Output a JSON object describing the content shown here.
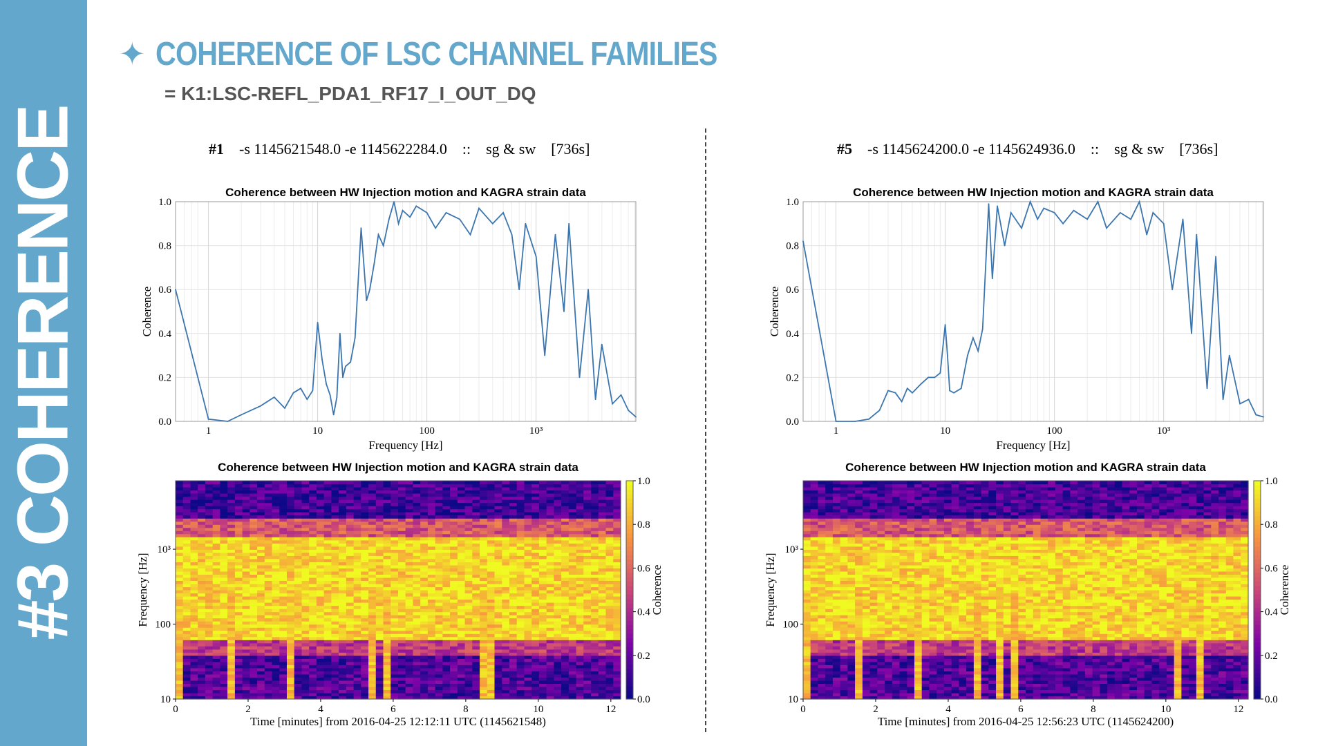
{
  "sidebar": {
    "label": "#3 COHERENCE"
  },
  "header": {
    "title_icon": "sparkle-star-icon",
    "title": "COHERENCE OF LSC CHANNEL FAMILIES",
    "subtitle": "= K1:LSC-REFL_PDA1_RF17_I_OUT_DQ"
  },
  "colors": {
    "accent": "#63a8cc",
    "line": "#3b75af"
  },
  "runs": [
    {
      "id": "#1",
      "range": "-s 1145621548.0 -e 1145622284.0",
      "sep": "::",
      "mode": "sg & sw",
      "duration": "[736s]",
      "spectrogram_xlabel": "Time [minutes] from 2016-04-25 12:12:11 UTC (1145621548)"
    },
    {
      "id": "#5",
      "range": "-s 1145624200.0 -e 1145624936.0",
      "sep": "::",
      "mode": "sg & sw",
      "duration": "[736s]",
      "spectrogram_xlabel": "Time [minutes] from 2016-04-25 12:56:23 UTC (1145624200)"
    }
  ],
  "chart_data": [
    {
      "type": "line",
      "title": "Coherence between HW Injection motion and KAGRA strain data",
      "xlabel": "Frequency [Hz]",
      "ylabel": "Coherence",
      "xscale": "log",
      "xlim": [
        0.5,
        8192
      ],
      "ylim": [
        0,
        1
      ],
      "xticks": [
        "1",
        "10",
        "100",
        "10³"
      ],
      "yticks": [
        "0.0",
        "0.2",
        "0.4",
        "0.6",
        "0.8",
        "1.0"
      ],
      "grid": true,
      "x": [
        0.5,
        1.0,
        1.5,
        2.0,
        3.0,
        4.0,
        5.0,
        6.0,
        7.0,
        8.0,
        9.0,
        10.0,
        11.0,
        12.0,
        13.0,
        14.0,
        15.0,
        16.0,
        17.0,
        18.0,
        20.0,
        22.0,
        25.0,
        28.0,
        30.0,
        33.0,
        36.0,
        40.0,
        45.0,
        50.0,
        55.0,
        60.0,
        70.0,
        80.0,
        100.0,
        120.0,
        150.0,
        200.0,
        250.0,
        300.0,
        400.0,
        500.0,
        600.0,
        700.0,
        800.0,
        1000.0,
        1200.0,
        1500.0,
        1800.0,
        2000.0,
        2500.0,
        3000.0,
        3500.0,
        4000.0,
        5000.0,
        6000.0,
        7000.0,
        8192.0
      ],
      "y": [
        0.6,
        0.01,
        0.0,
        0.03,
        0.07,
        0.11,
        0.06,
        0.13,
        0.15,
        0.1,
        0.14,
        0.45,
        0.28,
        0.17,
        0.12,
        0.03,
        0.11,
        0.4,
        0.2,
        0.25,
        0.27,
        0.38,
        0.88,
        0.55,
        0.6,
        0.72,
        0.85,
        0.8,
        0.92,
        1.0,
        0.9,
        0.96,
        0.93,
        0.98,
        0.95,
        0.88,
        0.95,
        0.92,
        0.85,
        0.97,
        0.9,
        0.95,
        0.85,
        0.6,
        0.9,
        0.75,
        0.3,
        0.85,
        0.5,
        0.9,
        0.2,
        0.6,
        0.1,
        0.35,
        0.08,
        0.12,
        0.05,
        0.02
      ]
    },
    {
      "type": "heatmap",
      "title": "Coherence between HW Injection motion and KAGRA strain data",
      "xlabel": "Time [minutes] from 2016-04-25 12:12:11 UTC (1145621548)",
      "ylabel": "Frequency [Hz]",
      "colorbar_label": "Coherence",
      "yscale": "log",
      "xlim": [
        0,
        12.27
      ],
      "ylim": [
        10,
        8192
      ],
      "xticks": [
        "0",
        "2",
        "4",
        "6",
        "8",
        "10",
        "12"
      ],
      "yticks": [
        "10",
        "100",
        "10³"
      ],
      "cticks": [
        "0.0",
        "0.2",
        "0.4",
        "0.6",
        "0.8",
        "1.0"
      ],
      "colormap": "plasma",
      "band_levels": [
        {
          "f_min": 10,
          "f_max": 40,
          "coherence": 0.15
        },
        {
          "f_min": 40,
          "f_max": 60,
          "coherence": 0.45
        },
        {
          "f_min": 60,
          "f_max": 1500,
          "coherence": 0.92
        },
        {
          "f_min": 1500,
          "f_max": 2500,
          "coherence": 0.55
        },
        {
          "f_min": 2500,
          "f_max": 8192,
          "coherence": 0.12
        }
      ],
      "bright_columns_min": [
        0.1,
        1.6,
        3.2,
        5.4,
        5.9,
        8.6
      ]
    },
    {
      "type": "line",
      "title": "Coherence between HW Injection motion and KAGRA strain data",
      "xlabel": "Frequency [Hz]",
      "ylabel": "Coherence",
      "xscale": "log",
      "xlim": [
        0.5,
        8192
      ],
      "ylim": [
        0,
        1
      ],
      "xticks": [
        "1",
        "10",
        "100",
        "10³"
      ],
      "yticks": [
        "0.0",
        "0.2",
        "0.4",
        "0.6",
        "0.8",
        "1.0"
      ],
      "grid": true,
      "x": [
        0.5,
        1.0,
        1.5,
        2.0,
        2.5,
        3.0,
        3.5,
        4.0,
        4.5,
        5.0,
        6.0,
        7.0,
        8.0,
        9.0,
        10.0,
        10.5,
        11.0,
        12.0,
        14.0,
        16.0,
        18.0,
        20.0,
        22.0,
        25.0,
        27.0,
        30.0,
        35.0,
        40.0,
        50.0,
        60.0,
        70.0,
        80.0,
        100.0,
        120.0,
        150.0,
        200.0,
        250.0,
        300.0,
        400.0,
        500.0,
        600.0,
        700.0,
        800.0,
        1000.0,
        1200.0,
        1500.0,
        1800.0,
        2000.0,
        2500.0,
        3000.0,
        3500.0,
        4000.0,
        5000.0,
        6000.0,
        7000.0,
        8192.0
      ],
      "y": [
        0.82,
        0.0,
        0.0,
        0.01,
        0.05,
        0.14,
        0.13,
        0.09,
        0.15,
        0.13,
        0.17,
        0.2,
        0.2,
        0.22,
        0.44,
        0.3,
        0.14,
        0.13,
        0.15,
        0.3,
        0.38,
        0.32,
        0.42,
        0.99,
        0.65,
        0.98,
        0.8,
        0.95,
        0.88,
        1.0,
        0.92,
        0.97,
        0.95,
        0.9,
        0.96,
        0.92,
        1.0,
        0.88,
        0.95,
        0.92,
        1.0,
        0.85,
        0.95,
        0.9,
        0.6,
        0.92,
        0.4,
        0.85,
        0.15,
        0.75,
        0.1,
        0.3,
        0.08,
        0.1,
        0.03,
        0.02
      ]
    },
    {
      "type": "heatmap",
      "title": "Coherence between HW Injection motion and KAGRA strain data",
      "xlabel": "Time [minutes] from 2016-04-25 12:56:23 UTC (1145624200)",
      "ylabel": "Frequency [Hz]",
      "colorbar_label": "Coherence",
      "yscale": "log",
      "xlim": [
        0,
        12.27
      ],
      "ylim": [
        10,
        8192
      ],
      "xticks": [
        "0",
        "2",
        "4",
        "6",
        "8",
        "10",
        "12"
      ],
      "yticks": [
        "10",
        "100",
        "10³"
      ],
      "cticks": [
        "0.0",
        "0.2",
        "0.4",
        "0.6",
        "0.8",
        "1.0"
      ],
      "colormap": "plasma",
      "band_levels": [
        {
          "f_min": 10,
          "f_max": 40,
          "coherence": 0.15
        },
        {
          "f_min": 40,
          "f_max": 60,
          "coherence": 0.45
        },
        {
          "f_min": 60,
          "f_max": 1500,
          "coherence": 0.92
        },
        {
          "f_min": 1500,
          "f_max": 2500,
          "coherence": 0.55
        },
        {
          "f_min": 2500,
          "f_max": 8192,
          "coherence": 0.12
        }
      ],
      "bright_columns_min": [
        0.1,
        1.6,
        3.2,
        4.8,
        5.4,
        5.9,
        10.3,
        11.0
      ]
    }
  ]
}
